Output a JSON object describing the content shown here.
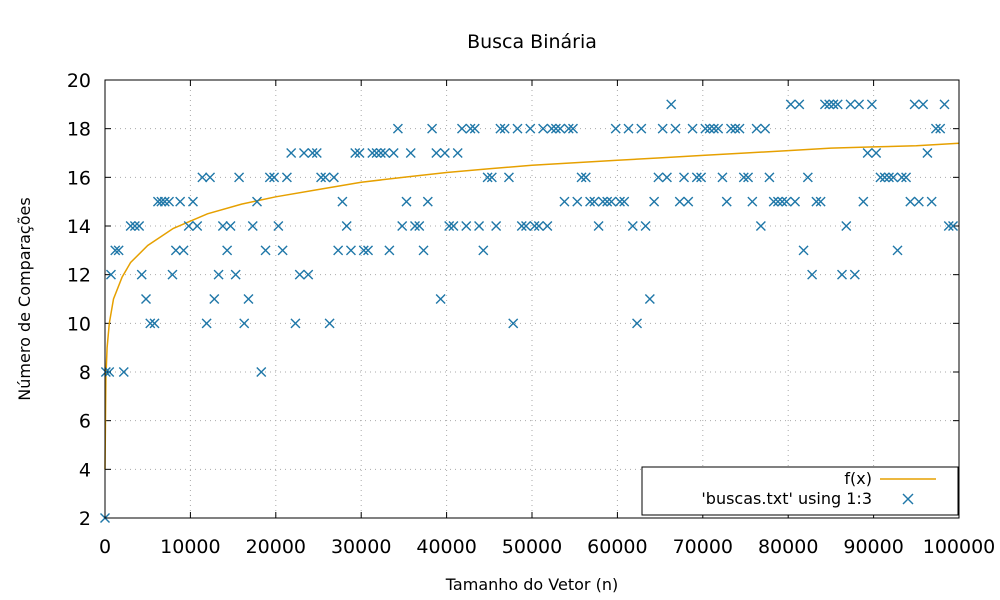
{
  "chart_data": {
    "type": "scatter",
    "title": "Busca Binária",
    "xlabel": "Tamanho do Vetor (n)",
    "ylabel": "Número de Comparações",
    "xlim": [
      0,
      100000
    ],
    "ylim": [
      2,
      20
    ],
    "grid": true,
    "legend_position": "bottom-right",
    "x_ticks": [
      "0",
      "10000",
      "20000",
      "30000",
      "40000",
      "50000",
      "60000",
      "70000",
      "80000",
      "90000",
      "100000"
    ],
    "y_ticks": [
      "2",
      "4",
      "6",
      "8",
      "10",
      "12",
      "14",
      "16",
      "18",
      "20"
    ],
    "series": [
      {
        "name": "f(x)",
        "kind": "line",
        "color": "#e6a000",
        "x": [
          1,
          100,
          250,
          500,
          1000,
          2000,
          3000,
          5000,
          8000,
          12000,
          16000,
          20000,
          25000,
          30000,
          35000,
          40000,
          45000,
          50000,
          55000,
          60000,
          65000,
          70000,
          75000,
          80000,
          85000,
          90000,
          95000,
          100000
        ],
        "y": [
          4.0,
          7.8,
          9.0,
          10.0,
          11.0,
          11.9,
          12.5,
          13.2,
          13.9,
          14.5,
          14.9,
          15.2,
          15.5,
          15.8,
          16.0,
          16.2,
          16.35,
          16.5,
          16.6,
          16.7,
          16.8,
          16.9,
          17.0,
          17.1,
          17.2,
          17.25,
          17.3,
          17.4
        ]
      },
      {
        "name": "'buscas.txt' using 1:3",
        "kind": "points",
        "color": "#1f77a8",
        "points": [
          [
            0,
            2
          ],
          [
            100,
            8
          ],
          [
            500,
            8
          ],
          [
            700,
            12
          ],
          [
            1200,
            13
          ],
          [
            1600,
            13
          ],
          [
            2200,
            8
          ],
          [
            3000,
            14
          ],
          [
            3500,
            14
          ],
          [
            4000,
            14
          ],
          [
            4300,
            12
          ],
          [
            4800,
            11
          ],
          [
            5300,
            10
          ],
          [
            5800,
            10
          ],
          [
            6200,
            15
          ],
          [
            6600,
            15
          ],
          [
            7000,
            15
          ],
          [
            7500,
            15
          ],
          [
            7900,
            12
          ],
          [
            8300,
            13
          ],
          [
            8800,
            15
          ],
          [
            9200,
            13
          ],
          [
            9800,
            14
          ],
          [
            10300,
            15
          ],
          [
            10800,
            14
          ],
          [
            11400,
            16
          ],
          [
            11900,
            10
          ],
          [
            12300,
            16
          ],
          [
            12800,
            11
          ],
          [
            13300,
            12
          ],
          [
            13800,
            14
          ],
          [
            14300,
            13
          ],
          [
            14700,
            14
          ],
          [
            15300,
            12
          ],
          [
            15700,
            16
          ],
          [
            16300,
            10
          ],
          [
            16800,
            11
          ],
          [
            17300,
            14
          ],
          [
            17800,
            15
          ],
          [
            18300,
            8
          ],
          [
            18800,
            13
          ],
          [
            19300,
            16
          ],
          [
            19800,
            16
          ],
          [
            20300,
            14
          ],
          [
            20800,
            13
          ],
          [
            21300,
            16
          ],
          [
            21800,
            17
          ],
          [
            22300,
            10
          ],
          [
            22800,
            12
          ],
          [
            23300,
            17
          ],
          [
            23800,
            12
          ],
          [
            24300,
            17
          ],
          [
            24800,
            17
          ],
          [
            25300,
            16
          ],
          [
            25800,
            16
          ],
          [
            26300,
            10
          ],
          [
            26800,
            16
          ],
          [
            27300,
            13
          ],
          [
            27800,
            15
          ],
          [
            28300,
            14
          ],
          [
            28800,
            13
          ],
          [
            29300,
            17
          ],
          [
            29800,
            17
          ],
          [
            30300,
            13
          ],
          [
            30800,
            13
          ],
          [
            31300,
            17
          ],
          [
            31800,
            17
          ],
          [
            32300,
            17
          ],
          [
            32800,
            17
          ],
          [
            33300,
            13
          ],
          [
            33800,
            17
          ],
          [
            34300,
            18
          ],
          [
            34800,
            14
          ],
          [
            35300,
            15
          ],
          [
            35800,
            17
          ],
          [
            36300,
            14
          ],
          [
            36800,
            14
          ],
          [
            37300,
            13
          ],
          [
            37800,
            15
          ],
          [
            38300,
            18
          ],
          [
            38800,
            17
          ],
          [
            39300,
            11
          ],
          [
            39800,
            17
          ],
          [
            40300,
            14
          ],
          [
            40800,
            14
          ],
          [
            41300,
            17
          ],
          [
            41800,
            18
          ],
          [
            42300,
            14
          ],
          [
            42800,
            18
          ],
          [
            43300,
            18
          ],
          [
            43800,
            14
          ],
          [
            44300,
            13
          ],
          [
            44800,
            16
          ],
          [
            45300,
            16
          ],
          [
            45800,
            14
          ],
          [
            46300,
            18
          ],
          [
            46800,
            18
          ],
          [
            47300,
            16
          ],
          [
            47800,
            10
          ],
          [
            48300,
            18
          ],
          [
            48800,
            14
          ],
          [
            49300,
            14
          ],
          [
            49800,
            18
          ],
          [
            50300,
            14
          ],
          [
            50800,
            14
          ],
          [
            51300,
            18
          ],
          [
            51800,
            14
          ],
          [
            52300,
            18
          ],
          [
            52800,
            18
          ],
          [
            53300,
            18
          ],
          [
            53800,
            15
          ],
          [
            54300,
            18
          ],
          [
            54800,
            18
          ],
          [
            55300,
            15
          ],
          [
            55800,
            16
          ],
          [
            56300,
            16
          ],
          [
            56800,
            15
          ],
          [
            57300,
            15
          ],
          [
            57800,
            14
          ],
          [
            58300,
            15
          ],
          [
            58800,
            15
          ],
          [
            59300,
            15
          ],
          [
            59800,
            18
          ],
          [
            60300,
            15
          ],
          [
            60800,
            15
          ],
          [
            61300,
            18
          ],
          [
            61800,
            14
          ],
          [
            62300,
            10
          ],
          [
            62800,
            18
          ],
          [
            63300,
            14
          ],
          [
            63800,
            11
          ],
          [
            64300,
            15
          ],
          [
            64800,
            16
          ],
          [
            65300,
            18
          ],
          [
            65800,
            16
          ],
          [
            66300,
            19
          ],
          [
            66800,
            18
          ],
          [
            67300,
            15
          ],
          [
            67800,
            16
          ],
          [
            68300,
            15
          ],
          [
            68800,
            18
          ],
          [
            69300,
            16
          ],
          [
            69800,
            16
          ],
          [
            70300,
            18
          ],
          [
            70800,
            18
          ],
          [
            71300,
            18
          ],
          [
            71800,
            18
          ],
          [
            72300,
            16
          ],
          [
            72800,
            15
          ],
          [
            73300,
            18
          ],
          [
            73800,
            18
          ],
          [
            74300,
            18
          ],
          [
            74800,
            16
          ],
          [
            75300,
            16
          ],
          [
            75800,
            15
          ],
          [
            76300,
            18
          ],
          [
            76800,
            14
          ],
          [
            77300,
            18
          ],
          [
            77800,
            16
          ],
          [
            78300,
            15
          ],
          [
            78800,
            15
          ],
          [
            79300,
            15
          ],
          [
            79800,
            15
          ],
          [
            80300,
            19
          ],
          [
            80800,
            15
          ],
          [
            81300,
            19
          ],
          [
            81800,
            13
          ],
          [
            82300,
            16
          ],
          [
            82800,
            12
          ],
          [
            83300,
            15
          ],
          [
            83800,
            15
          ],
          [
            84300,
            19
          ],
          [
            84800,
            19
          ],
          [
            85300,
            19
          ],
          [
            85800,
            19
          ],
          [
            86300,
            12
          ],
          [
            86800,
            14
          ],
          [
            87300,
            19
          ],
          [
            87800,
            12
          ],
          [
            88300,
            19
          ],
          [
            88800,
            15
          ],
          [
            89300,
            17
          ],
          [
            89800,
            19
          ],
          [
            90300,
            17
          ],
          [
            90800,
            16
          ],
          [
            91300,
            16
          ],
          [
            91800,
            16
          ],
          [
            92300,
            16
          ],
          [
            92800,
            13
          ],
          [
            93300,
            16
          ],
          [
            93800,
            16
          ],
          [
            94300,
            15
          ],
          [
            94800,
            19
          ],
          [
            95300,
            15
          ],
          [
            95800,
            19
          ],
          [
            96300,
            17
          ],
          [
            96800,
            15
          ],
          [
            97300,
            18
          ],
          [
            97800,
            18
          ],
          [
            98300,
            19
          ],
          [
            98800,
            14
          ],
          [
            99300,
            14
          ]
        ]
      }
    ]
  }
}
